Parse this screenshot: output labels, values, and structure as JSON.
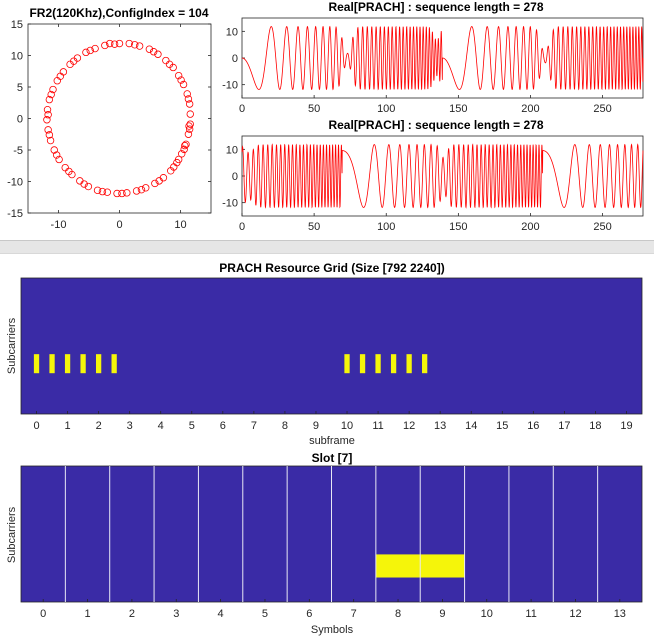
{
  "colors": {
    "circle": "#ff0000",
    "signal": "#ff0000",
    "grid_bg": "#3a2ba6",
    "block": "#f5f50a",
    "slot_lines": "#e8e8f5"
  },
  "chart_data": [
    {
      "type": "scatter",
      "title": "FR2(120Khz),ConfigIndex = 104",
      "marker": "circle",
      "xlim": [
        -15,
        15
      ],
      "ylim": [
        -15,
        15
      ],
      "xticks": [
        -10,
        0,
        10
      ],
      "yticks": [
        -15,
        -10,
        -5,
        0,
        5,
        10,
        15
      ],
      "points": [
        [
          -1.6,
          11.9
        ],
        [
          0.0,
          11.9
        ],
        [
          1.6,
          11.9
        ],
        [
          3.3,
          11.5
        ],
        [
          4.9,
          11.0
        ],
        [
          6.3,
          10.2
        ],
        [
          7.6,
          9.2
        ],
        [
          8.8,
          8.1
        ],
        [
          9.7,
          6.8
        ],
        [
          10.5,
          5.4
        ],
        [
          11.1,
          3.9
        ],
        [
          11.5,
          2.3
        ],
        [
          11.6,
          0.7
        ],
        [
          11.6,
          -0.9
        ],
        [
          11.3,
          -2.5
        ],
        [
          10.9,
          -4.1
        ],
        [
          10.2,
          -5.6
        ],
        [
          9.4,
          -7.0
        ],
        [
          8.4,
          -8.3
        ],
        [
          7.2,
          -9.4
        ],
        [
          5.8,
          -10.3
        ],
        [
          4.3,
          -11.0
        ],
        [
          2.8,
          -11.5
        ],
        [
          1.2,
          -11.8
        ],
        [
          -0.4,
          -11.9
        ],
        [
          -2.0,
          -11.7
        ],
        [
          -3.6,
          -11.4
        ],
        [
          -5.1,
          -10.8
        ],
        [
          -6.5,
          -9.9
        ],
        [
          -7.8,
          -8.9
        ],
        [
          -8.9,
          -7.8
        ],
        [
          -9.9,
          -6.5
        ],
        [
          -10.7,
          -5.0
        ],
        [
          -11.3,
          -3.5
        ],
        [
          -11.7,
          -1.8
        ],
        [
          -11.9,
          -0.2
        ],
        [
          -11.8,
          1.4
        ],
        [
          -11.5,
          3.0
        ],
        [
          -10.9,
          4.6
        ],
        [
          -10.2,
          6.0
        ],
        [
          -9.2,
          7.4
        ],
        [
          -8.1,
          8.6
        ],
        [
          -6.9,
          9.6
        ],
        [
          -5.5,
          10.5
        ],
        [
          -4.0,
          11.1
        ],
        [
          -2.4,
          11.6
        ],
        [
          -0.8,
          11.8
        ],
        [
          2.5,
          11.7
        ],
        [
          5.6,
          10.6
        ],
        [
          8.2,
          8.6
        ],
        [
          10.1,
          6.1
        ],
        [
          11.3,
          3.1
        ],
        [
          11.5,
          -1.7
        ],
        [
          10.6,
          -4.9
        ],
        [
          8.9,
          -7.7
        ],
        [
          6.5,
          -9.9
        ],
        [
          3.6,
          -11.3
        ],
        [
          0.4,
          -11.9
        ],
        [
          -2.8,
          -11.6
        ],
        [
          -5.8,
          -10.4
        ],
        [
          -8.3,
          -8.4
        ],
        [
          -10.3,
          -5.8
        ],
        [
          -11.5,
          -2.6
        ],
        [
          -11.7,
          0.6
        ],
        [
          -11.2,
          3.8
        ],
        [
          -9.7,
          6.7
        ],
        [
          -7.5,
          9.1
        ],
        [
          -4.8,
          10.8
        ],
        [
          9.7,
          -6.5
        ],
        [
          10.7,
          -4.3
        ],
        [
          11.4,
          -1.2
        ]
      ]
    },
    {
      "type": "line",
      "title": "Real[PRACH] : sequence length = 278",
      "x_range": [
        0,
        278
      ],
      "xlim": [
        0,
        278
      ],
      "ylim": [
        -15,
        15
      ],
      "xticks": [
        0,
        50,
        100,
        150,
        200,
        250
      ],
      "yticks": [
        -10,
        0,
        10
      ]
    },
    {
      "type": "line",
      "title": "Real[PRACH] : sequence length = 278",
      "x_range": [
        0,
        278
      ],
      "xlim": [
        0,
        278
      ],
      "ylim": [
        -15,
        15
      ],
      "xticks": [
        0,
        50,
        100,
        150,
        200,
        250
      ],
      "yticks": [
        -10,
        0,
        10
      ]
    },
    {
      "type": "heatmap",
      "title": "PRACH Resource Grid (Size [792 2240])",
      "xlabel": "subframe",
      "ylabel": "Subcarriers",
      "xlim": [
        0,
        20
      ],
      "xticks": [
        0,
        1,
        2,
        3,
        4,
        5,
        6,
        7,
        8,
        9,
        10,
        11,
        12,
        13,
        14,
        15,
        16,
        17,
        18,
        19
      ],
      "blocks_x": [
        0.5,
        1.0,
        1.5,
        2.0,
        2.5,
        3.0,
        10.5,
        11.0,
        11.5,
        12.0,
        12.5,
        13.0
      ],
      "block_width": 0.17,
      "block_y_range": [
        0.3,
        0.44
      ]
    },
    {
      "type": "heatmap",
      "title": "Slot [7]",
      "xlabel": "Symbols",
      "ylabel": "Subcarriers",
      "xlim": [
        -0.5,
        13.5
      ],
      "xticks": [
        0,
        1,
        2,
        3,
        4,
        5,
        6,
        7,
        8,
        9,
        10,
        11,
        12,
        13
      ],
      "symbol_boundaries": [
        0.5,
        1.5,
        2.5,
        3.5,
        4.5,
        5.5,
        6.5,
        7.5,
        8.5,
        9.5,
        10.5,
        11.5,
        12.5
      ],
      "highlight_symbols": [
        8,
        9
      ],
      "block_y_range": [
        0.18,
        0.35
      ]
    }
  ]
}
